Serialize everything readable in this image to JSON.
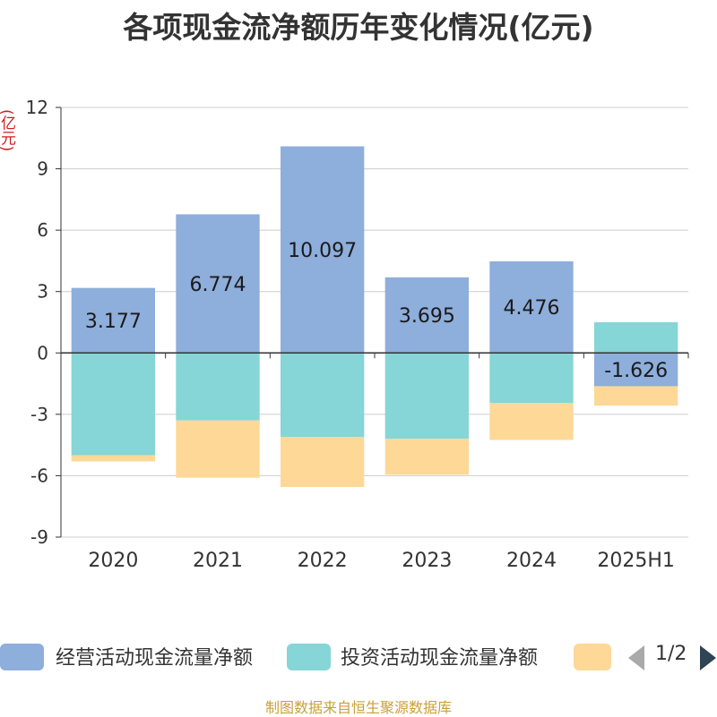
{
  "chart_data": {
    "type": "bar",
    "stacked": true,
    "title": "各项现金流净额历年变化情况(亿元)",
    "ylabel": "(亿元)",
    "xlabel": "",
    "categories": [
      "2020",
      "2021",
      "2022",
      "2023",
      "2024",
      "2025H1"
    ],
    "ylim": [
      -9,
      12
    ],
    "yticks": [
      12,
      9,
      6,
      3,
      0,
      -3,
      -6,
      -9
    ],
    "grid": true,
    "legend_placement": "bottom",
    "series": [
      {
        "name": "经营活动现金流量净额",
        "color": "#8eaedb",
        "values": [
          3.177,
          6.774,
          10.097,
          3.695,
          4.476,
          -1.626
        ],
        "labels": [
          "3.177",
          "6.774",
          "10.097",
          "3.695",
          "4.476",
          "-1.626"
        ]
      },
      {
        "name": "投资活动现金流量净额",
        "color": "#86d5d7",
        "values": [
          -5.0,
          -3.3,
          -4.1,
          -4.2,
          -2.45,
          1.5
        ]
      },
      {
        "color": "#fdd897",
        "values": [
          -0.3,
          -2.8,
          -2.45,
          -1.75,
          -1.8,
          -0.95
        ]
      }
    ]
  },
  "legend": {
    "items": [
      "经营活动现金流量净额",
      "投资活动现金流量净额"
    ],
    "page": "1/2"
  },
  "footer": "制图数据来自恒生聚源数据库"
}
